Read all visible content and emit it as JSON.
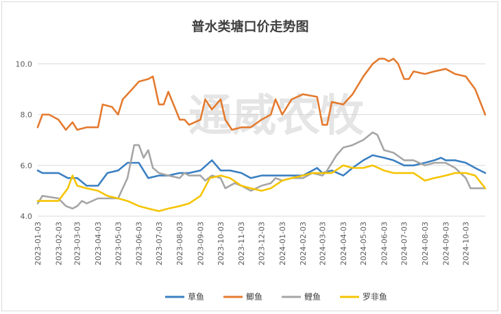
{
  "chart_data": {
    "type": "line",
    "title": "普水类塘口价走势图",
    "watermark": "通威农牧",
    "xlabel": "",
    "ylabel": "",
    "ylim": [
      4.0,
      10.6
    ],
    "yticks": [
      "4.0",
      "6.0",
      "8.0",
      "10.0"
    ],
    "grid": "horizontal",
    "legend_position": "bottom",
    "x_tick_labels": [
      "2023-01-03",
      "2023-02-03",
      "2023-03-03",
      "2023-04-03",
      "2023-05-03",
      "2023-06-03",
      "2023-07-03",
      "2023-08-03",
      "2023-09-03",
      "2023-10-03",
      "2023-11-03",
      "2023-12-03",
      "2024-01-03",
      "2024-02-03",
      "2024-03-03",
      "2024-04-03",
      "2024-05-03",
      "2024-06-03",
      "2024-07-03",
      "2024-08-03",
      "2024-09-03",
      "2024-10-03"
    ],
    "x_start": "2023-01-03",
    "x_end": "2024-11-01",
    "series": [
      {
        "name": "草鱼",
        "color": "#3a7fc1",
        "points": [
          [
            "2023-01-03",
            5.8
          ],
          [
            "2023-01-10",
            5.7
          ],
          [
            "2023-02-03",
            5.7
          ],
          [
            "2023-02-17",
            5.5
          ],
          [
            "2023-03-03",
            5.5
          ],
          [
            "2023-03-17",
            5.2
          ],
          [
            "2023-04-03",
            5.2
          ],
          [
            "2023-04-17",
            5.7
          ],
          [
            "2023-05-03",
            5.8
          ],
          [
            "2023-05-17",
            6.1
          ],
          [
            "2023-06-03",
            6.1
          ],
          [
            "2023-06-17",
            5.5
          ],
          [
            "2023-07-03",
            5.6
          ],
          [
            "2023-07-17",
            5.6
          ],
          [
            "2023-08-03",
            5.7
          ],
          [
            "2023-08-17",
            5.7
          ],
          [
            "2023-09-03",
            5.8
          ],
          [
            "2023-09-20",
            6.2
          ],
          [
            "2023-10-03",
            5.8
          ],
          [
            "2023-10-17",
            5.8
          ],
          [
            "2023-11-03",
            5.7
          ],
          [
            "2023-11-17",
            5.5
          ],
          [
            "2023-12-03",
            5.6
          ],
          [
            "2023-12-17",
            5.6
          ],
          [
            "2024-01-03",
            5.6
          ],
          [
            "2024-01-17",
            5.6
          ],
          [
            "2024-02-03",
            5.6
          ],
          [
            "2024-02-24",
            5.9
          ],
          [
            "2024-03-03",
            5.7
          ],
          [
            "2024-03-17",
            5.8
          ],
          [
            "2024-04-03",
            5.6
          ],
          [
            "2024-04-17",
            5.9
          ],
          [
            "2024-05-03",
            6.2
          ],
          [
            "2024-05-17",
            6.4
          ],
          [
            "2024-06-03",
            6.3
          ],
          [
            "2024-06-17",
            6.2
          ],
          [
            "2024-07-03",
            6.0
          ],
          [
            "2024-07-17",
            6.0
          ],
          [
            "2024-08-03",
            6.1
          ],
          [
            "2024-08-17",
            6.2
          ],
          [
            "2024-08-27",
            6.3
          ],
          [
            "2024-09-03",
            6.2
          ],
          [
            "2024-09-17",
            6.2
          ],
          [
            "2024-10-03",
            6.1
          ],
          [
            "2024-10-17",
            5.9
          ],
          [
            "2024-11-01",
            5.7
          ]
        ]
      },
      {
        "name": "鲫鱼",
        "color": "#e47a2e",
        "points": [
          [
            "2023-01-03",
            7.5
          ],
          [
            "2023-01-10",
            8.0
          ],
          [
            "2023-01-20",
            8.0
          ],
          [
            "2023-02-03",
            7.8
          ],
          [
            "2023-02-14",
            7.4
          ],
          [
            "2023-02-24",
            7.7
          ],
          [
            "2023-03-03",
            7.4
          ],
          [
            "2023-03-17",
            7.5
          ],
          [
            "2023-04-03",
            7.5
          ],
          [
            "2023-04-10",
            8.4
          ],
          [
            "2023-04-24",
            8.3
          ],
          [
            "2023-05-03",
            8.0
          ],
          [
            "2023-05-10",
            8.6
          ],
          [
            "2023-05-24",
            9.0
          ],
          [
            "2023-06-03",
            9.3
          ],
          [
            "2023-06-17",
            9.4
          ],
          [
            "2023-06-24",
            9.5
          ],
          [
            "2023-07-03",
            8.4
          ],
          [
            "2023-07-10",
            8.4
          ],
          [
            "2023-07-17",
            8.9
          ],
          [
            "2023-08-03",
            7.8
          ],
          [
            "2023-08-10",
            7.8
          ],
          [
            "2023-08-17",
            7.6
          ],
          [
            "2023-09-03",
            7.8
          ],
          [
            "2023-09-10",
            8.6
          ],
          [
            "2023-09-20",
            8.2
          ],
          [
            "2023-10-03",
            8.6
          ],
          [
            "2023-10-10",
            7.8
          ],
          [
            "2023-10-20",
            7.4
          ],
          [
            "2023-11-03",
            7.5
          ],
          [
            "2023-11-17",
            7.5
          ],
          [
            "2023-12-03",
            7.8
          ],
          [
            "2023-12-17",
            8.0
          ],
          [
            "2023-12-24",
            8.6
          ],
          [
            "2024-01-03",
            8.0
          ],
          [
            "2024-01-17",
            8.6
          ],
          [
            "2024-02-03",
            8.8
          ],
          [
            "2024-02-24",
            8.7
          ],
          [
            "2024-03-03",
            7.6
          ],
          [
            "2024-03-10",
            7.6
          ],
          [
            "2024-03-17",
            8.5
          ],
          [
            "2024-04-03",
            8.4
          ],
          [
            "2024-04-17",
            8.8
          ],
          [
            "2024-05-03",
            9.5
          ],
          [
            "2024-05-17",
            10.0
          ],
          [
            "2024-05-27",
            10.2
          ],
          [
            "2024-06-03",
            10.2
          ],
          [
            "2024-06-10",
            10.1
          ],
          [
            "2024-06-17",
            10.2
          ],
          [
            "2024-06-24",
            10.0
          ],
          [
            "2024-07-03",
            9.4
          ],
          [
            "2024-07-10",
            9.4
          ],
          [
            "2024-07-17",
            9.7
          ],
          [
            "2024-08-03",
            9.6
          ],
          [
            "2024-08-17",
            9.7
          ],
          [
            "2024-09-03",
            9.8
          ],
          [
            "2024-09-17",
            9.6
          ],
          [
            "2024-10-03",
            9.5
          ],
          [
            "2024-10-17",
            9.0
          ],
          [
            "2024-11-01",
            8.0
          ]
        ]
      },
      {
        "name": "鲤鱼",
        "color": "#a5a5a5",
        "points": [
          [
            "2023-01-03",
            4.5
          ],
          [
            "2023-01-10",
            4.8
          ],
          [
            "2023-02-03",
            4.7
          ],
          [
            "2023-02-14",
            4.4
          ],
          [
            "2023-02-24",
            4.3
          ],
          [
            "2023-03-03",
            4.4
          ],
          [
            "2023-03-10",
            4.6
          ],
          [
            "2023-03-17",
            4.5
          ],
          [
            "2023-04-03",
            4.7
          ],
          [
            "2023-04-17",
            4.7
          ],
          [
            "2023-05-03",
            4.7
          ],
          [
            "2023-05-17",
            5.5
          ],
          [
            "2023-05-27",
            6.8
          ],
          [
            "2023-06-03",
            6.8
          ],
          [
            "2023-06-10",
            6.3
          ],
          [
            "2023-06-17",
            6.6
          ],
          [
            "2023-06-24",
            5.9
          ],
          [
            "2023-07-03",
            5.7
          ],
          [
            "2023-07-17",
            5.6
          ],
          [
            "2023-08-03",
            5.5
          ],
          [
            "2023-08-10",
            5.7
          ],
          [
            "2023-08-17",
            5.6
          ],
          [
            "2023-09-03",
            5.6
          ],
          [
            "2023-09-10",
            5.4
          ],
          [
            "2023-09-20",
            5.6
          ],
          [
            "2023-10-03",
            5.5
          ],
          [
            "2023-10-10",
            5.1
          ],
          [
            "2023-10-24",
            5.3
          ],
          [
            "2023-11-03",
            5.2
          ],
          [
            "2023-11-17",
            5.0
          ],
          [
            "2023-12-03",
            5.2
          ],
          [
            "2023-12-17",
            5.3
          ],
          [
            "2023-12-24",
            5.5
          ],
          [
            "2024-01-03",
            5.4
          ],
          [
            "2024-01-17",
            5.5
          ],
          [
            "2024-02-03",
            5.5
          ],
          [
            "2024-02-17",
            5.7
          ],
          [
            "2024-03-03",
            5.6
          ],
          [
            "2024-03-10",
            5.8
          ],
          [
            "2024-03-24",
            6.4
          ],
          [
            "2024-04-03",
            6.7
          ],
          [
            "2024-04-17",
            6.8
          ],
          [
            "2024-05-03",
            7.0
          ],
          [
            "2024-05-17",
            7.3
          ],
          [
            "2024-05-24",
            7.2
          ],
          [
            "2024-06-03",
            6.6
          ],
          [
            "2024-06-17",
            6.5
          ],
          [
            "2024-07-03",
            6.2
          ],
          [
            "2024-07-17",
            6.2
          ],
          [
            "2024-08-03",
            6.0
          ],
          [
            "2024-08-17",
            6.1
          ],
          [
            "2024-09-03",
            6.1
          ],
          [
            "2024-09-17",
            5.9
          ],
          [
            "2024-10-03",
            5.5
          ],
          [
            "2024-10-10",
            5.1
          ],
          [
            "2024-10-24",
            5.1
          ],
          [
            "2024-11-01",
            5.1
          ]
        ]
      },
      {
        "name": "罗非鱼",
        "color": "#f5c400",
        "points": [
          [
            "2023-01-03",
            4.6
          ],
          [
            "2023-01-17",
            4.6
          ],
          [
            "2023-02-03",
            4.6
          ],
          [
            "2023-02-17",
            5.1
          ],
          [
            "2023-02-24",
            5.6
          ],
          [
            "2023-03-03",
            5.2
          ],
          [
            "2023-03-17",
            5.1
          ],
          [
            "2023-04-03",
            5.0
          ],
          [
            "2023-04-17",
            4.8
          ],
          [
            "2023-05-03",
            4.7
          ],
          [
            "2023-05-17",
            4.6
          ],
          [
            "2023-06-03",
            4.4
          ],
          [
            "2023-06-17",
            4.3
          ],
          [
            "2023-07-03",
            4.2
          ],
          [
            "2023-07-17",
            4.3
          ],
          [
            "2023-08-03",
            4.4
          ],
          [
            "2023-08-17",
            4.5
          ],
          [
            "2023-09-03",
            4.8
          ],
          [
            "2023-09-17",
            5.5
          ],
          [
            "2023-10-03",
            5.6
          ],
          [
            "2023-10-17",
            5.5
          ],
          [
            "2023-11-03",
            5.2
          ],
          [
            "2023-11-17",
            5.1
          ],
          [
            "2023-12-03",
            5.0
          ],
          [
            "2023-12-17",
            5.1
          ],
          [
            "2024-01-03",
            5.4
          ],
          [
            "2024-01-17",
            5.5
          ],
          [
            "2024-02-03",
            5.6
          ],
          [
            "2024-02-17",
            5.7
          ],
          [
            "2024-03-03",
            5.7
          ],
          [
            "2024-03-17",
            5.7
          ],
          [
            "2024-04-03",
            6.0
          ],
          [
            "2024-04-17",
            5.9
          ],
          [
            "2024-05-03",
            5.9
          ],
          [
            "2024-05-17",
            6.0
          ],
          [
            "2024-06-03",
            5.8
          ],
          [
            "2024-06-17",
            5.7
          ],
          [
            "2024-07-03",
            5.7
          ],
          [
            "2024-07-17",
            5.7
          ],
          [
            "2024-08-03",
            5.4
          ],
          [
            "2024-08-17",
            5.5
          ],
          [
            "2024-09-03",
            5.6
          ],
          [
            "2024-09-17",
            5.7
          ],
          [
            "2024-10-03",
            5.7
          ],
          [
            "2024-10-17",
            5.6
          ],
          [
            "2024-11-01",
            5.1
          ]
        ]
      }
    ]
  }
}
